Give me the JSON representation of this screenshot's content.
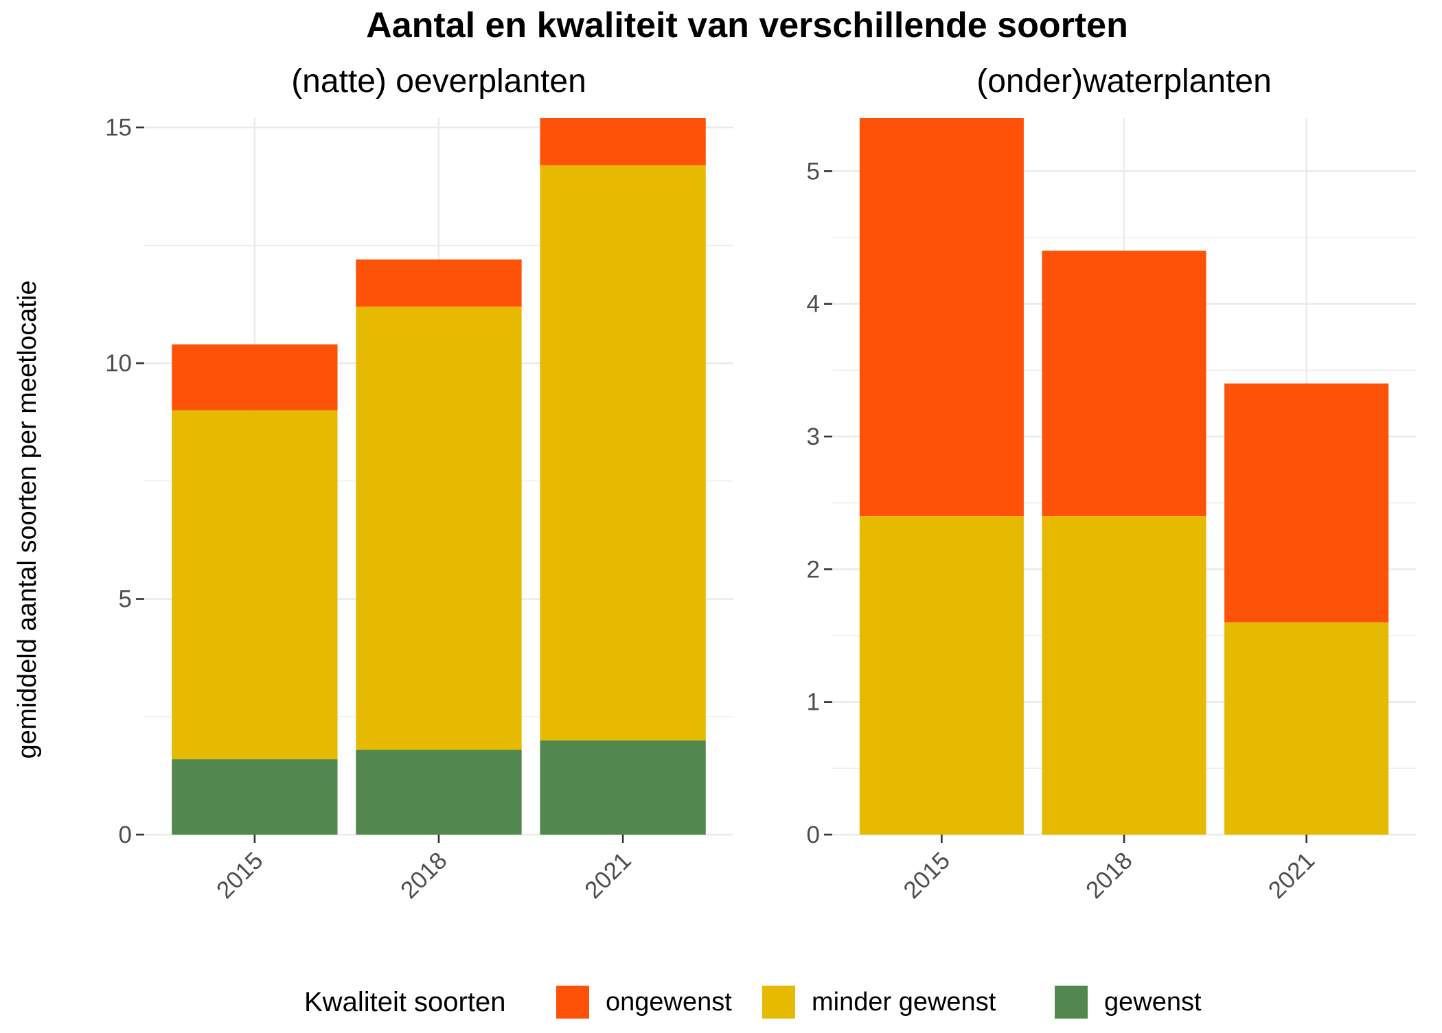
{
  "chart_data": {
    "type": "bar",
    "stacked": true,
    "title": "Aantal en kwaliteit van verschillende soorten",
    "ylabel": "gemiddeld aantal soorten per meetlocatie",
    "xlabel": "",
    "grid": true,
    "legend": {
      "title": "Kwaliteit soorten",
      "position": "bottom",
      "entries": [
        {
          "name": "ongewenst",
          "color": "#FF5209"
        },
        {
          "name": "minder gewenst",
          "color": "#E5BA00"
        },
        {
          "name": "gewenst",
          "color": "#52884D"
        }
      ]
    },
    "panels": [
      {
        "title": "(natte) oeverplanten",
        "categories": [
          "2015",
          "2018",
          "2021"
        ],
        "ylim": [
          0,
          15.2
        ],
        "yticks": [
          "0",
          "5",
          "10",
          "15"
        ],
        "series": [
          {
            "name": "gewenst",
            "color": "#52884D",
            "values": [
              1.6,
              1.8,
              2.0
            ]
          },
          {
            "name": "minder gewenst",
            "color": "#E5BA00",
            "values": [
              7.4,
              9.4,
              12.2
            ]
          },
          {
            "name": "ongewenst",
            "color": "#FF5209",
            "values": [
              1.4,
              1.0,
              1.0
            ]
          }
        ]
      },
      {
        "title": "(onder)waterplanten",
        "categories": [
          "2015",
          "2018",
          "2021"
        ],
        "ylim": [
          0,
          5.4
        ],
        "yticks": [
          "0",
          "1",
          "2",
          "3",
          "4",
          "5"
        ],
        "series": [
          {
            "name": "gewenst",
            "color": "#52884D",
            "values": [
              0,
              0,
              0
            ]
          },
          {
            "name": "minder gewenst",
            "color": "#E5BA00",
            "values": [
              2.4,
              2.4,
              1.6
            ]
          },
          {
            "name": "ongewenst",
            "color": "#FF5209",
            "values": [
              3.0,
              2.0,
              1.8
            ]
          }
        ]
      }
    ]
  }
}
